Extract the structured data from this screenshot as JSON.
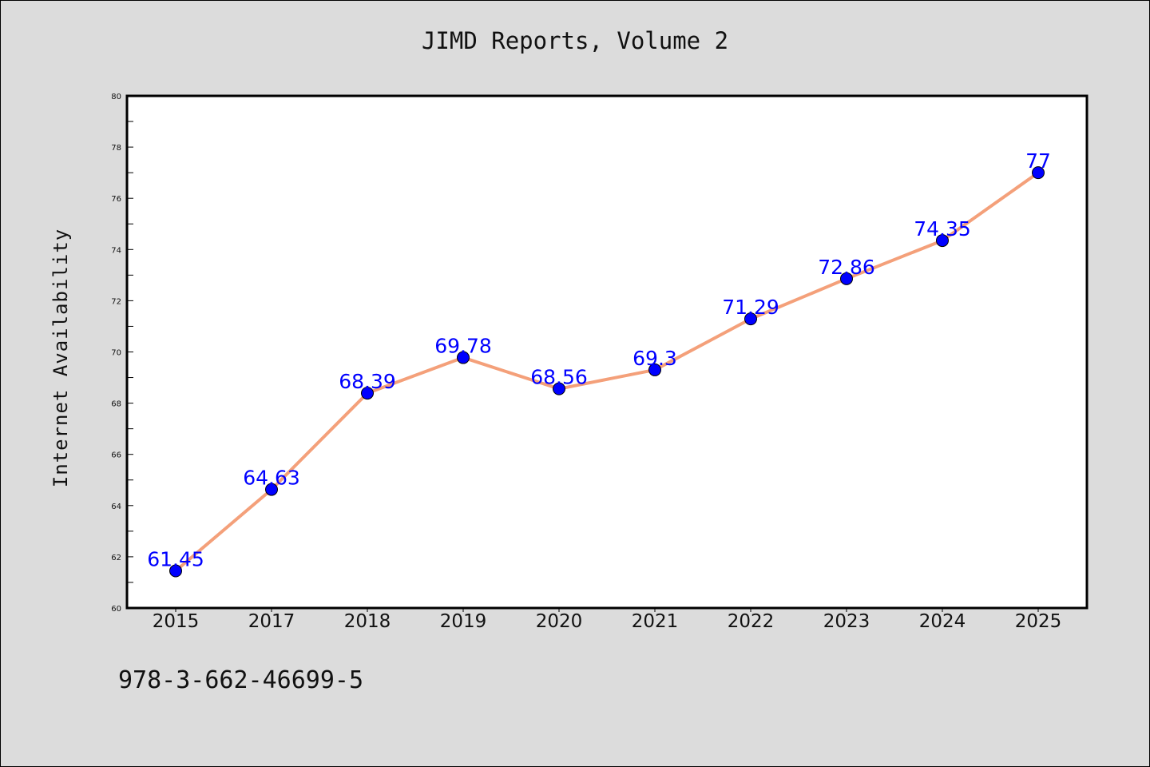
{
  "chart_data": {
    "type": "line",
    "title": "JIMD Reports, Volume 2",
    "xlabel": "",
    "ylabel": "Internet Availability",
    "categories": [
      "2015",
      "2017",
      "2018",
      "2019",
      "2020",
      "2021",
      "2022",
      "2023",
      "2024",
      "2025"
    ],
    "series": [
      {
        "values": [
          61.45,
          64.63,
          68.39,
          69.78,
          68.56,
          69.3,
          71.29,
          72.86,
          74.35,
          77
        ],
        "labels": [
          "61.45",
          "64.63",
          "68.39",
          "69.78",
          "68.56",
          "69.3",
          "71.29",
          "72.86",
          "74.35",
          "77"
        ]
      }
    ],
    "ylim": [
      60,
      80
    ],
    "yticks": [
      "60",
      "62",
      "64",
      "66",
      "68",
      "70",
      "72",
      "74",
      "76",
      "78",
      "80"
    ],
    "grid": false,
    "legend": "none",
    "colors": {
      "line": "#f4a07a",
      "marker": "#0000ff",
      "data_label": "#0000ff",
      "plot_background": "#ffffff",
      "page_background": "#dcdcdc"
    }
  },
  "footnote": "978-3-662-46699-5"
}
